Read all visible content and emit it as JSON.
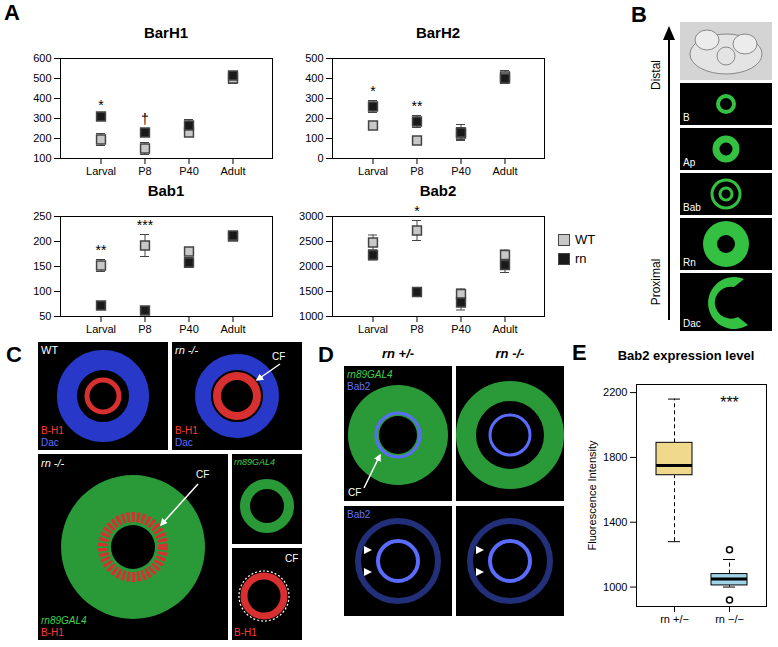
{
  "chart_data": [
    {
      "type": "scatter",
      "title": "BarH1",
      "categories": [
        "Larval",
        "P8",
        "P40",
        "Adult"
      ],
      "series": [
        {
          "name": "WT",
          "color": "#c8c8c8",
          "marker": "square",
          "values": [
            195,
            150,
            230,
            500
          ],
          "errors": [
            30,
            30,
            20,
            25
          ]
        },
        {
          "name": "rn",
          "color": "#1a1a1a",
          "marker": "square",
          "values": [
            310,
            230,
            265,
            515
          ],
          "errors": [
            10,
            20,
            30,
            20
          ]
        }
      ],
      "annotations": [
        "*",
        "†",
        null,
        null
      ],
      "ylim": [
        100,
        600
      ],
      "yticks": [
        100,
        200,
        300,
        400,
        500,
        600
      ]
    },
    {
      "type": "scatter",
      "title": "BarH2",
      "categories": [
        "Larval",
        "P8",
        "P40",
        "Adult"
      ],
      "series": [
        {
          "name": "WT",
          "color": "#c8c8c8",
          "marker": "square",
          "values": [
            165,
            90,
            125,
            410
          ],
          "errors": [
            15,
            10,
            30,
            30
          ]
        },
        {
          "name": "rn",
          "color": "#1a1a1a",
          "marker": "square",
          "values": [
            260,
            185,
            130,
            400
          ],
          "errors": [
            30,
            30,
            40,
            25
          ]
        }
      ],
      "annotations": [
        "*",
        "**",
        null,
        null
      ],
      "ylim": [
        0,
        500
      ],
      "yticks": [
        0,
        100,
        200,
        300,
        400,
        500
      ]
    },
    {
      "type": "scatter",
      "title": "Bab1",
      "categories": [
        "Larval",
        "P8",
        "P40",
        "Adult"
      ],
      "series": [
        {
          "name": "WT",
          "color": "#c8c8c8",
          "marker": "square",
          "values": [
            152,
            192,
            180,
            210
          ],
          "errors": [
            12,
            22,
            8,
            8
          ]
        },
        {
          "name": "rn",
          "color": "#1a1a1a",
          "marker": "square",
          "values": [
            72,
            62,
            158,
            212
          ],
          "errors": [
            3,
            3,
            10,
            8
          ]
        }
      ],
      "annotations": [
        "**",
        "***",
        null,
        null
      ],
      "ylim": [
        50,
        250
      ],
      "yticks": [
        50,
        100,
        150,
        200,
        250
      ]
    },
    {
      "type": "scatter",
      "title": "Bab2",
      "categories": [
        "Larval",
        "P8",
        "P40",
        "Adult"
      ],
      "series": [
        {
          "name": "WT",
          "color": "#c8c8c8",
          "marker": "square",
          "values": [
            2480,
            2720,
            1450,
            2230
          ],
          "errors": [
            150,
            200,
            100,
            100
          ]
        },
        {
          "name": "rn",
          "color": "#1a1a1a",
          "marker": "square",
          "values": [
            2230,
            1490,
            1280,
            2030
          ],
          "errors": [
            100,
            80,
            150,
            150
          ]
        }
      ],
      "annotations": [
        null,
        "*",
        null,
        null
      ],
      "ylim": [
        1000,
        3000
      ],
      "yticks": [
        1000,
        1500,
        2000,
        2500,
        3000
      ],
      "legend": "right"
    },
    {
      "type": "box",
      "title": "Bab2 expression level",
      "y_label": "Fluorescence Intensity",
      "categories": [
        "rn +/−",
        "rn −/−"
      ],
      "colors": [
        "#f0d98c",
        "#9fd3e6"
      ],
      "boxes": [
        {
          "min": 1280,
          "q1": 1690,
          "median": 1750,
          "q3": 1890,
          "max": 2160,
          "outliers": []
        },
        {
          "min": 1000,
          "q1": 1010,
          "median": 1050,
          "q3": 1080,
          "max": 1170,
          "outliers": [
            1230,
            920
          ]
        }
      ],
      "annotations": [
        null,
        "***"
      ],
      "ylim": [
        880,
        2250
      ],
      "yticks": [
        1000,
        1400,
        1800,
        2200
      ]
    }
  ],
  "panel_labels": {
    "A": "A",
    "B": "B",
    "C": "C",
    "D": "D",
    "E": "E"
  },
  "panel_B": {
    "axis_top": "Distal",
    "axis_bottom": "Proximal",
    "images": [
      "B",
      "Ap",
      "Bab",
      "Rn",
      "Dac"
    ]
  },
  "panel_C": {
    "images": [
      {
        "title": "WT",
        "stains": [
          {
            "text": "B-H1",
            "color": "#ff3a3a"
          },
          {
            "text": "Dac",
            "color": "#6070ff"
          }
        ]
      },
      {
        "title": "rn -/-",
        "arrow": "CF",
        "stains": [
          {
            "text": "B-H1",
            "color": "#ff3a3a"
          },
          {
            "text": "Dac",
            "color": "#6070ff"
          }
        ]
      },
      {
        "title": "rn -/-",
        "arrow": "CF",
        "stains": [
          {
            "text": "rn89GAL4",
            "color": "#40d050"
          },
          {
            "text": "B-H1",
            "color": "#ff3a3a"
          }
        ]
      },
      {
        "stains": [
          {
            "text": "rn89GAL4",
            "color": "#40d050"
          }
        ]
      },
      {
        "arrow": "CF",
        "stains": [
          {
            "text": "B-H1",
            "color": "#ff3a3a"
          }
        ]
      }
    ]
  },
  "panel_D": {
    "columns": [
      "rn +/-",
      "rn -/-"
    ],
    "top_stains": [
      {
        "text": "rn89GAL4",
        "color": "#40d050"
      },
      {
        "text": "Bab2",
        "color": "#6070ff"
      }
    ],
    "top_arrow": "CF",
    "bottom_stain": {
      "text": "Bab2",
      "color": "#6070ff"
    }
  }
}
